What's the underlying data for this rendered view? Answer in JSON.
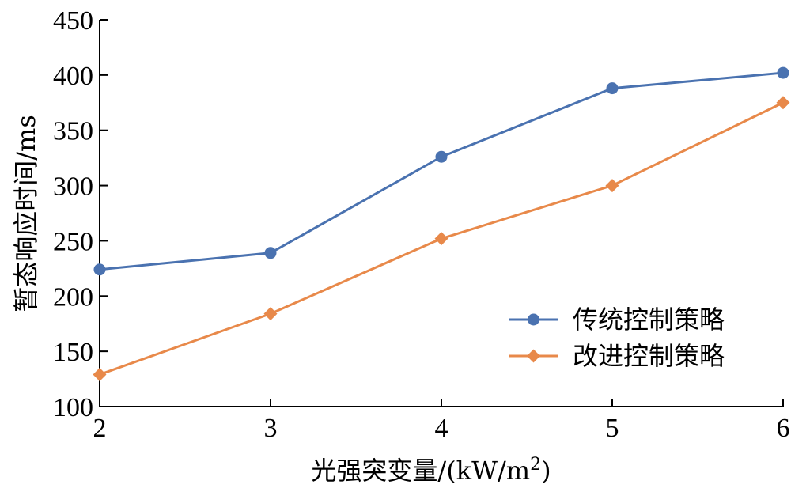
{
  "chart_data": {
    "type": "line",
    "title": "",
    "xlabel": "光强突变量/(kW/m",
    "xlabel_sup": "2",
    "xlabel_close": ")",
    "ylabel": "暂态响应时间/ms",
    "x": [
      2,
      3,
      4,
      5,
      6
    ],
    "xlim": [
      2,
      6
    ],
    "ylim": [
      100,
      450
    ],
    "yticks": [
      100,
      150,
      200,
      250,
      300,
      350,
      400,
      450
    ],
    "xticks": [
      2,
      3,
      4,
      5,
      6
    ],
    "grid": false,
    "legend_position": "bottom-right",
    "series": [
      {
        "name": "传统控制策略",
        "values": [
          224,
          239,
          326,
          388,
          402
        ],
        "color": "#4a72b0",
        "marker": "circle"
      },
      {
        "name": "改进控制策略",
        "values": [
          129,
          184,
          252,
          300,
          375
        ],
        "color": "#e8894a",
        "marker": "diamond"
      }
    ]
  }
}
